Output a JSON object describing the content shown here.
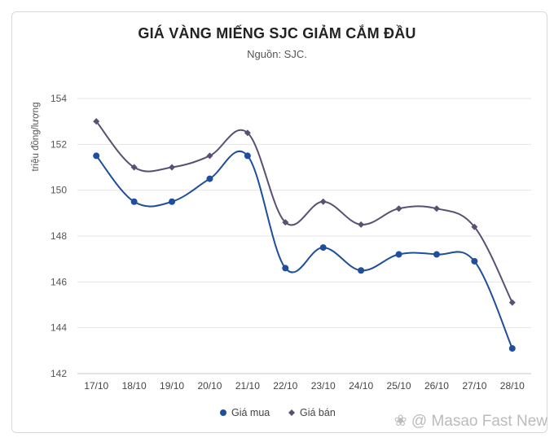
{
  "chart_data": {
    "type": "line",
    "title": "GIÁ VÀNG MIẾNG SJC GIẢM CẮM ĐẦU",
    "subtitle": "Nguồn: SJC.",
    "ylabel": "triệu đồng/lượng",
    "xlabel": "",
    "categories": [
      "17/10",
      "18/10",
      "19/10",
      "20/10",
      "21/10",
      "22/10",
      "23/10",
      "24/10",
      "25/10",
      "26/10",
      "27/10",
      "28/10"
    ],
    "ylim": [
      142,
      154
    ],
    "yticks": [
      142,
      144,
      146,
      148,
      150,
      152,
      154
    ],
    "grid": true,
    "legend_position": "bottom",
    "series": [
      {
        "name": "Giá mua",
        "color": "#1f4e9c",
        "marker": "circle",
        "values": [
          151.5,
          149.5,
          149.5,
          150.5,
          151.5,
          146.6,
          147.5,
          146.5,
          147.2,
          147.2,
          146.9,
          143.1
        ]
      },
      {
        "name": "Giá bán",
        "color": "#5a5073",
        "marker": "diamond",
        "values": [
          153.0,
          151.0,
          151.0,
          151.5,
          152.5,
          148.6,
          149.5,
          148.5,
          149.2,
          149.2,
          148.4,
          145.1
        ]
      }
    ]
  },
  "watermark": "@ Masao Fast New"
}
